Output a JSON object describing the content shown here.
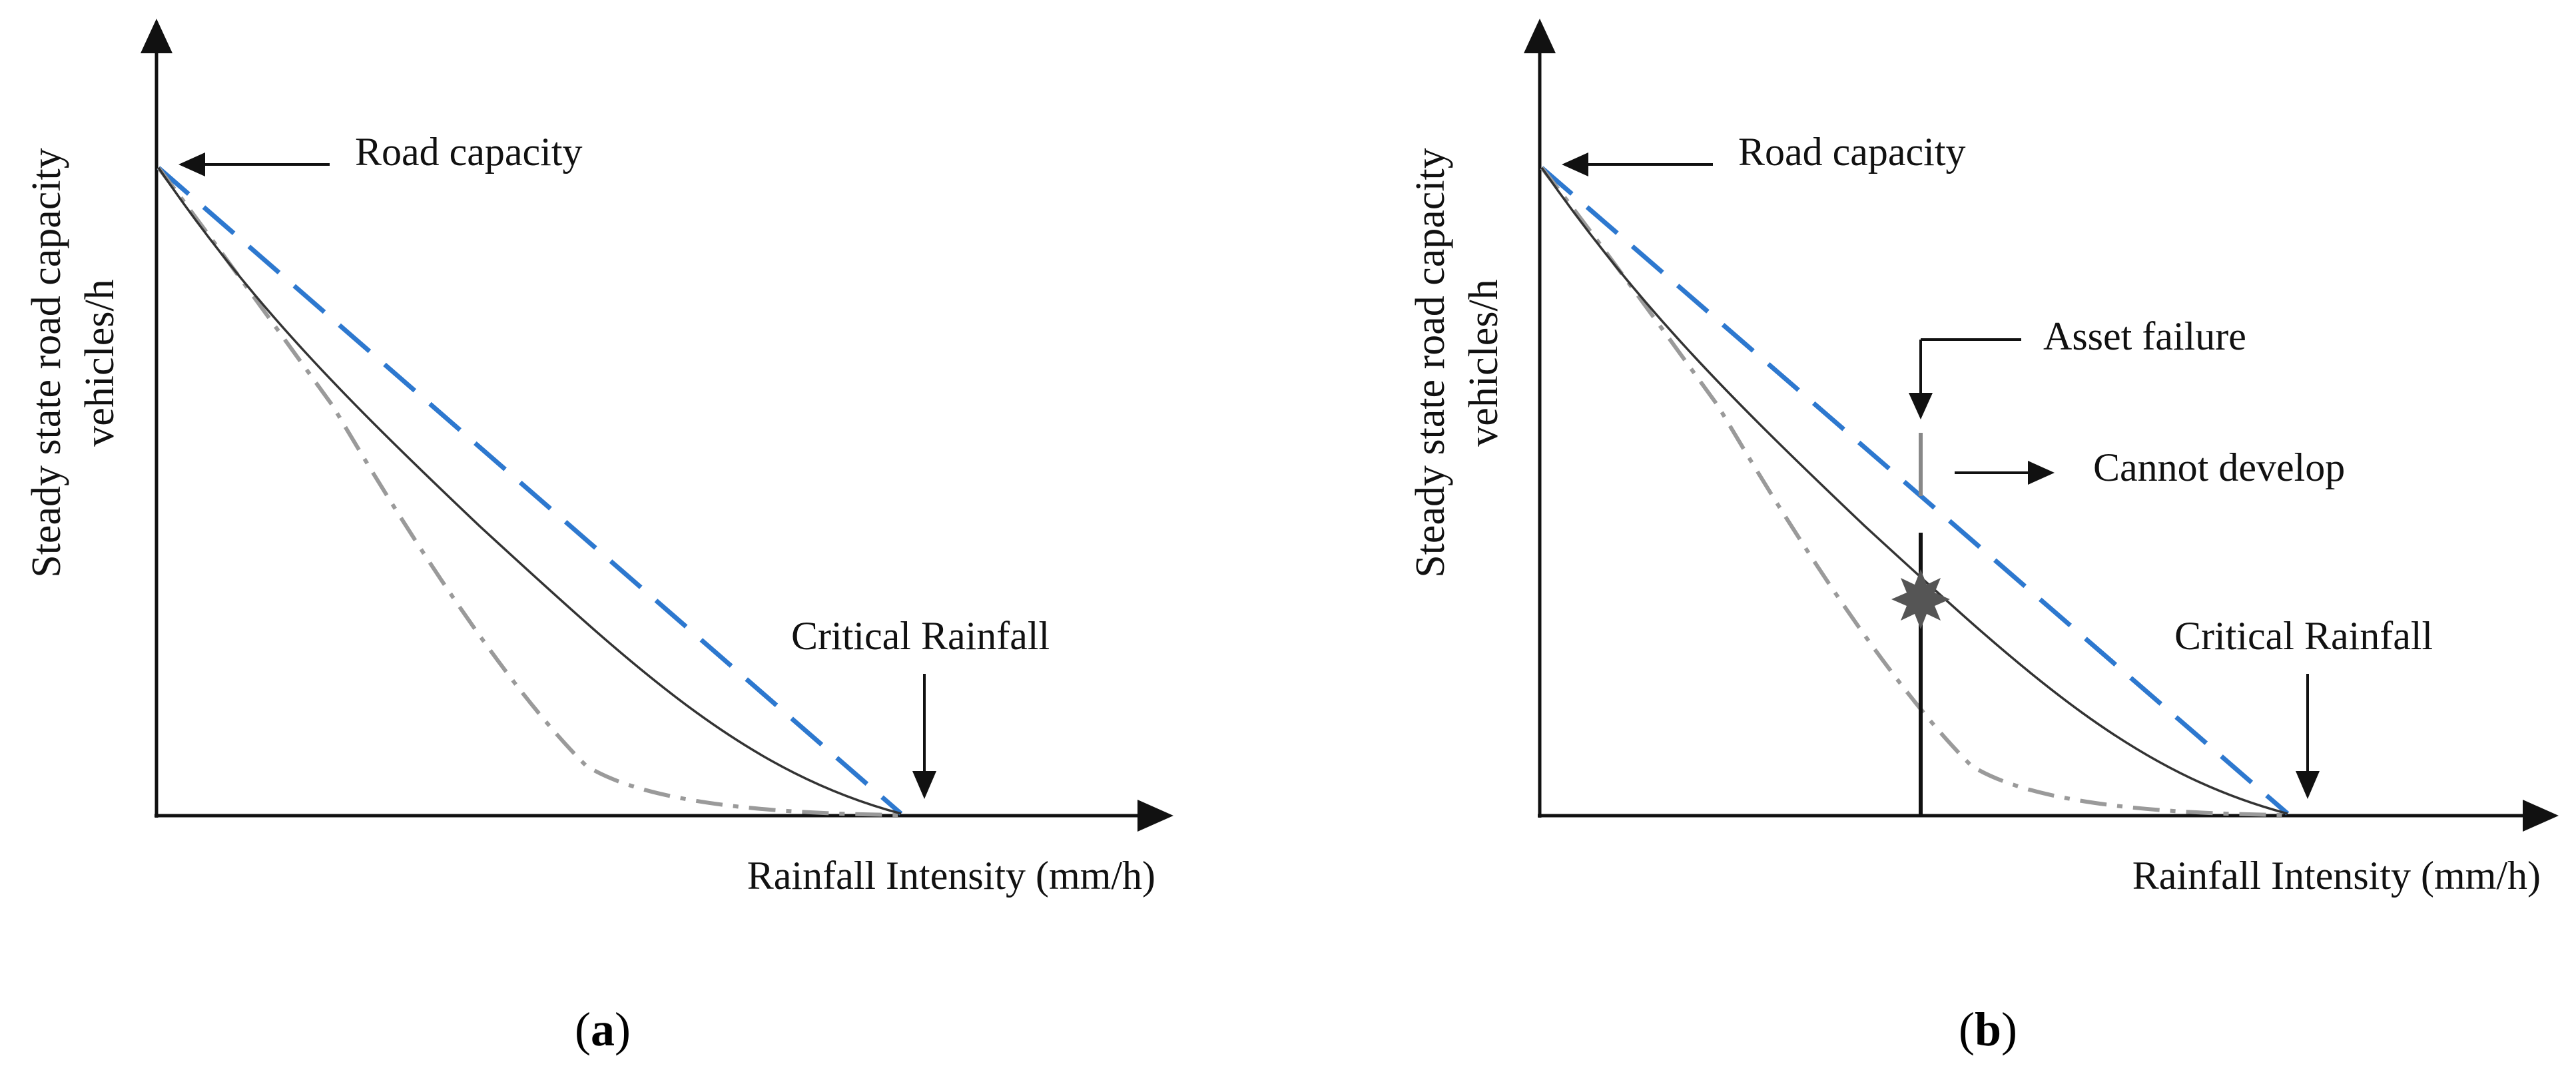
{
  "colors": {
    "axis": "#111111",
    "capacity_line": "#2d78cf",
    "actual_curve": "#333333",
    "dashdot_curve": "#9a9a9a",
    "failure_marker": "#555555"
  },
  "panels": [
    {
      "id": "a",
      "label_open": "(",
      "label_letter": "a",
      "label_close": ")",
      "y_axis_label_line1": "Steady state road capacity",
      "y_axis_label_line2": "vehicles/h",
      "x_axis_label": "Rainfall Intensity (mm/h)",
      "road_capacity": "Road capacity",
      "critical_rainfall": "Critical Rainfall"
    },
    {
      "id": "b",
      "label_open": "(",
      "label_letter": "b",
      "label_close": ")",
      "y_axis_label_line1": "Steady state road capacity",
      "y_axis_label_line2": "vehicles/h",
      "x_axis_label": "Rainfall Intensity (mm/h)",
      "road_capacity": "Road capacity",
      "critical_rainfall": "Critical Rainfall",
      "asset_failure": "Asset failure",
      "cannot_develop": "Cannot develop"
    }
  ]
}
